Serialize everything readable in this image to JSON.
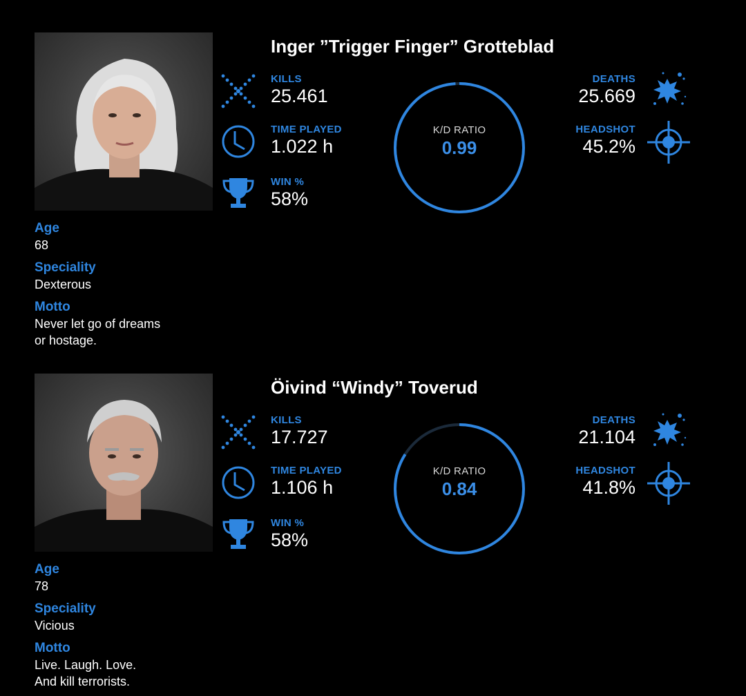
{
  "profiles": [
    {
      "name": "Inger ”Trigger Finger” Grotteblad",
      "info": {
        "age_label": "Age",
        "age": "68",
        "speciality_label": "Speciality",
        "speciality": "Dexterous",
        "motto_label": "Motto",
        "motto": "Never let go of dreams\nor hostage."
      },
      "stats": {
        "kills_label": "KILLS",
        "kills": "25.461",
        "time_label": "TIME PLAYED",
        "time": "1.022 h",
        "win_label": "WIN %",
        "win": "58%",
        "deaths_label": "DEATHS",
        "deaths": "25.669",
        "headshot_label": "HEADSHOT",
        "headshot": "45.2%"
      },
      "kd": {
        "label": "K/D RATIO",
        "value": "0.99",
        "fraction": 0.99
      },
      "hair_color": "#d9d9d9"
    },
    {
      "name": "Öivind “Windy” Toverud",
      "info": {
        "age_label": "Age",
        "age": "78",
        "speciality_label": "Speciality",
        "speciality": "Vicious",
        "motto_label": "Motto",
        "motto": "Live. Laugh. Love.\nAnd kill terrorists."
      },
      "stats": {
        "kills_label": "KILLS",
        "kills": "17.727",
        "time_label": "TIME PLAYED",
        "time": "1.106 h",
        "win_label": "WIN %",
        "win": "58%",
        "deaths_label": "DEATHS",
        "deaths": "21.104",
        "headshot_label": "HEADSHOT",
        "headshot": "41.8%"
      },
      "kd": {
        "label": "K/D RATIO",
        "value": "0.84",
        "fraction": 0.84
      },
      "hair_color": "#c8c8c8"
    }
  ],
  "colors": {
    "accent": "#2f86e0",
    "ring_track": "#1b2a3a",
    "background": "#000000"
  },
  "icons": [
    "crossed-swords-icon",
    "clock-icon",
    "trophy-icon",
    "blood-splat-icon",
    "crosshair-icon"
  ]
}
